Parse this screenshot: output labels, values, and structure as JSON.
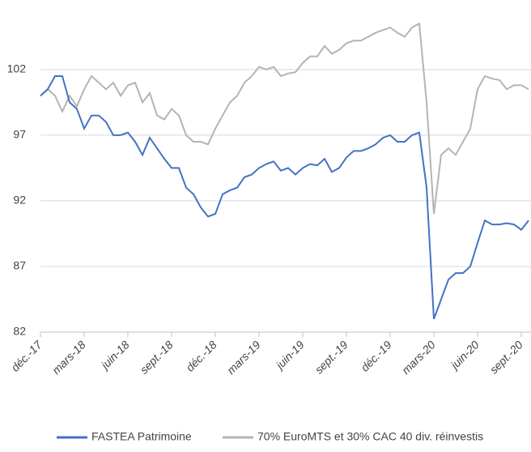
{
  "chart_data": {
    "type": "line",
    "categories": [
      "déc.-17",
      null,
      null,
      null,
      null,
      null,
      "mars-18",
      null,
      null,
      null,
      null,
      null,
      "juin-18",
      null,
      null,
      null,
      null,
      null,
      "sept.-18",
      null,
      null,
      null,
      null,
      null,
      "déc.-18",
      null,
      null,
      null,
      null,
      null,
      "mars-19",
      null,
      null,
      null,
      null,
      null,
      "juin-19",
      null,
      null,
      null,
      null,
      null,
      "sept.-19",
      null,
      null,
      null,
      null,
      null,
      "déc.-19",
      null,
      null,
      null,
      null,
      null,
      "mars-20",
      null,
      null,
      null,
      null,
      null,
      "juin-20",
      null,
      null,
      null,
      null,
      null,
      "sept.-20",
      null
    ],
    "series": [
      {
        "name": "FASTEA Patrimoine",
        "color": "#4472c4",
        "values": [
          100,
          100.5,
          101.5,
          101.5,
          99.5,
          99,
          97.5,
          98.5,
          98.5,
          98,
          97,
          97,
          97.2,
          96.5,
          95.5,
          96.8,
          96,
          95.2,
          94.5,
          94.5,
          93,
          92.5,
          91.5,
          90.8,
          91,
          92.5,
          92.8,
          93,
          93.8,
          94,
          94.5,
          94.8,
          95,
          94.3,
          94.5,
          94,
          94.5,
          94.8,
          94.7,
          95.2,
          94.2,
          94.5,
          95.3,
          95.8,
          95.8,
          96,
          96.3,
          96.8,
          97,
          96.5,
          96.5,
          97,
          97.2,
          93,
          83,
          84.5,
          86,
          86.5,
          86.5,
          87,
          88.8,
          90.5,
          90.2,
          90.2,
          90.3,
          90.2,
          89.8,
          90.5
        ]
      },
      {
        "name": "70% EuroMTS et 30% CAC 40 div. réinvestis",
        "color": "#b4b4b4",
        "values": [
          100,
          100.5,
          100,
          98.8,
          100,
          99.2,
          100.5,
          101.5,
          101,
          100.5,
          101,
          100,
          100.8,
          101,
          99.5,
          100.2,
          98.5,
          98.2,
          99,
          98.5,
          97,
          96.5,
          96.5,
          96.3,
          97.5,
          98.5,
          99.5,
          100,
          101,
          101.5,
          102.2,
          102,
          102.2,
          101.5,
          101.7,
          101.8,
          102.5,
          103,
          103,
          103.8,
          103.2,
          103.5,
          104,
          104.2,
          104.2,
          104.5,
          104.8,
          105,
          105.2,
          104.8,
          104.5,
          105.2,
          105.5,
          99.5,
          91,
          95.5,
          96,
          95.5,
          96.5,
          97.5,
          100.5,
          101.5,
          101.3,
          101.2,
          100.5,
          100.8,
          100.8,
          100.5
        ]
      }
    ],
    "ylim": [
      82,
      106
    ],
    "yticks": [
      82,
      87,
      92,
      97,
      102
    ],
    "grid": true,
    "legend": "bottom"
  }
}
